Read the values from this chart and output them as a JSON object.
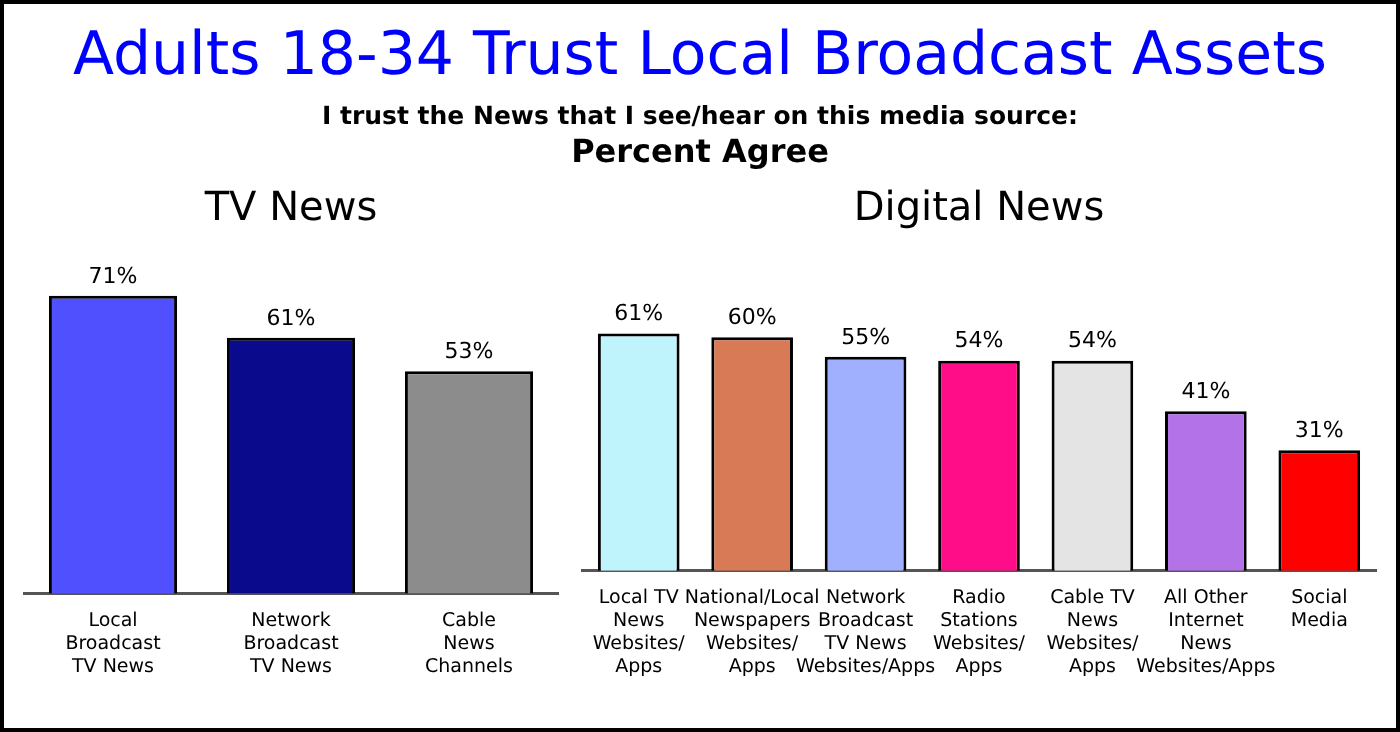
{
  "chart_data": [
    {
      "type": "other",
      "title": "Adults 18-34 Trust Local Broadcast Assets",
      "subtitle": "I trust the News that I see/hear on this media source:",
      "annotations": [
        "Percent Agree"
      ]
    },
    {
      "type": "bar",
      "title": "TV News",
      "categories": [
        "Local\nBroadcast\nTV News",
        "Network\nBroadcast\nTV News",
        "Cable\nNews\nChannels"
      ],
      "values": [
        71,
        61,
        53
      ],
      "value_labels": [
        "71%",
        "61%",
        "53%"
      ],
      "colors": [
        "#5050ff",
        "#0a0a8c",
        "#8c8c8c"
      ],
      "relative": false
    },
    {
      "type": "bar",
      "title": "Digital News",
      "categories": [
        "Local TV\nNews\nWebsites/\nApps",
        "National/Local\nNewspapers\nWebsites/\nApps",
        "Network\nBroadcast\nTV News\nWebsites/Apps",
        "Radio\nStations\nWebsites/\nApps",
        "Cable TV\nNews\nWebsites/\nApps",
        "All Other\nInternet\nNews\nWebsites/Apps",
        "Social\nMedia"
      ],
      "values": [
        61,
        60,
        55,
        54,
        54,
        41,
        31
      ],
      "value_labels": [
        "61%",
        "60%",
        "55%",
        "54%",
        "54%",
        "41%",
        "31%"
      ],
      "colors": [
        "#c0f4fc",
        "#d87a55",
        "#a0b0ff",
        "#ff0c88",
        "#e4e4e4",
        "#b472e8",
        "#ff0000"
      ],
      "relative": false
    }
  ]
}
